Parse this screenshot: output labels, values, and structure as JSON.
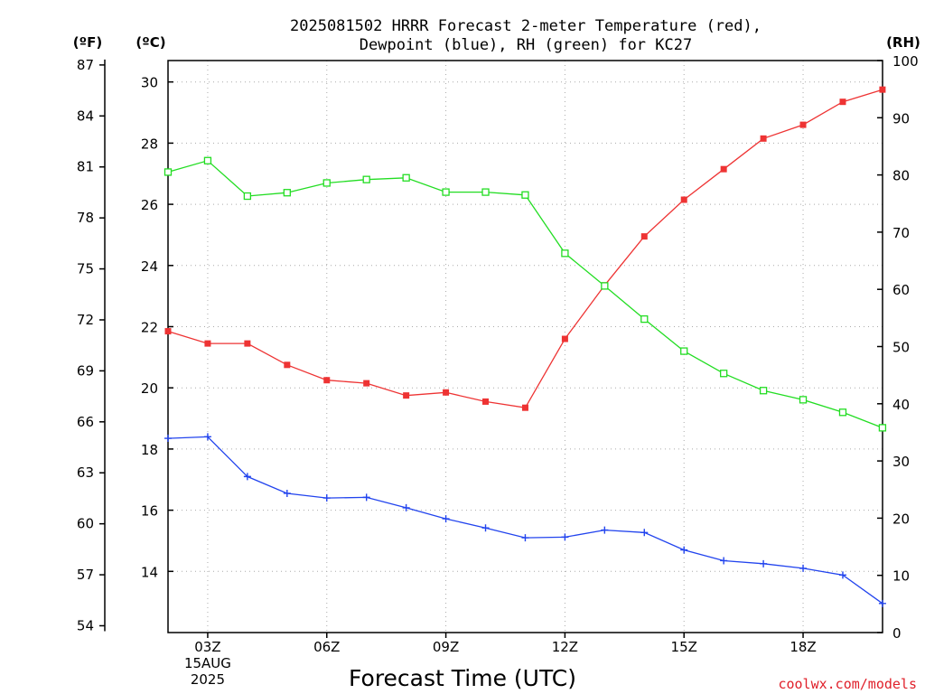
{
  "chart_data": {
    "type": "line",
    "title": [
      "2025081502 HRRR Forecast 2-meter Temperature (red),",
      "Dewpoint (blue), RH (green) for KC27"
    ],
    "xlabel": "Forecast Time (UTC)",
    "units": {
      "fahrenheit": "(ºF)",
      "celsius": "(ºC)",
      "rh": "(RH)"
    },
    "x": [
      "02Z",
      "03Z",
      "04Z",
      "05Z",
      "06Z",
      "07Z",
      "08Z",
      "09Z",
      "10Z",
      "11Z",
      "12Z",
      "13Z",
      "14Z",
      "15Z",
      "16Z",
      "17Z",
      "18Z",
      "19Z",
      "20Z"
    ],
    "x_tick_labels": [
      {
        "at": "03Z",
        "lines": [
          "03Z",
          "15AUG",
          "2025"
        ]
      },
      {
        "at": "06Z",
        "lines": [
          "06Z"
        ]
      },
      {
        "at": "09Z",
        "lines": [
          "09Z"
        ]
      },
      {
        "at": "12Z",
        "lines": [
          "12Z"
        ]
      },
      {
        "at": "15Z",
        "lines": [
          "15Z"
        ]
      },
      {
        "at": "18Z",
        "lines": [
          "18Z"
        ]
      }
    ],
    "ylim_c": [
      12,
      30.7
    ],
    "y_ticks_c": [
      14,
      16,
      18,
      20,
      22,
      24,
      26,
      28,
      30
    ],
    "y_ticks_f": [
      54,
      57,
      60,
      63,
      66,
      69,
      72,
      75,
      78,
      81,
      84,
      87
    ],
    "ylim_rh": [
      0,
      100
    ],
    "y_ticks_rh": [
      0,
      10,
      20,
      30,
      40,
      50,
      60,
      70,
      80,
      90,
      100
    ],
    "grid": true,
    "series": [
      {
        "axis": "celsius",
        "color": "#ee3333",
        "marker": "filled-square",
        "values": [
          21.85,
          21.45,
          21.45,
          20.75,
          20.25,
          20.15,
          19.75,
          19.85,
          19.55,
          19.35,
          21.6,
          23.35,
          24.95,
          26.15,
          27.15,
          28.15,
          28.6,
          29.35,
          29.75
        ]
      },
      {
        "axis": "celsius",
        "color": "#2244ee",
        "marker": "plus",
        "values": [
          18.35,
          18.4,
          17.1,
          16.55,
          16.4,
          16.42,
          16.08,
          15.72,
          15.42,
          15.1,
          15.12,
          15.35,
          15.27,
          14.7,
          14.35,
          14.25,
          14.1,
          13.88,
          12.95
        ]
      },
      {
        "axis": "rh",
        "color": "#22dd22",
        "marker": "open-square",
        "values": [
          80.5,
          82.5,
          76.3,
          76.9,
          78.6,
          79.2,
          79.5,
          77.0,
          77.0,
          76.5,
          66.3,
          60.6,
          54.8,
          49.2,
          45.3,
          42.3,
          40.7,
          38.5,
          35.8
        ]
      }
    ]
  },
  "credit": "coolwx.com/models"
}
